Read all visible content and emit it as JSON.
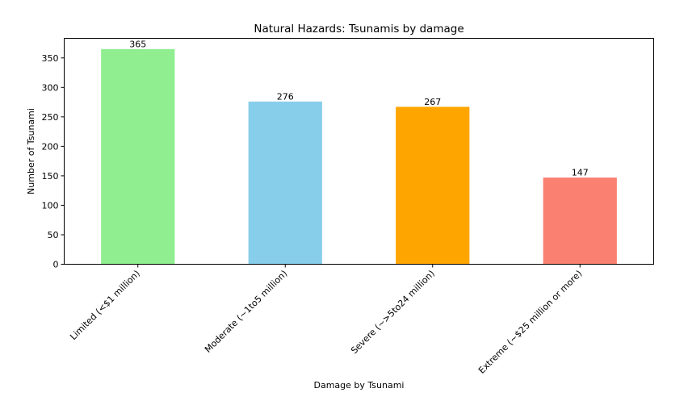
{
  "chart_data": {
    "type": "bar",
    "title": "Natural Hazards: Tsunamis by damage",
    "xlabel": "Damage by Tsunami",
    "ylabel": "Number of Tsunami",
    "categories": [
      "Limited (<$1 million)",
      "Moderate (~1to5 million)",
      "Severe (~>5to24 million)",
      "Extreme (~$25 million or more)"
    ],
    "values": [
      365,
      276,
      267,
      147
    ],
    "value_labels": [
      "365",
      "276",
      "267",
      "147"
    ],
    "colors": [
      "#90ee90",
      "#87ceeb",
      "#ffa500",
      "#fa8072"
    ],
    "ylim": [
      0,
      383.25
    ],
    "yticks": [
      0,
      50,
      100,
      150,
      200,
      250,
      300,
      350
    ],
    "ytick_labels": [
      "0",
      "50",
      "100",
      "150",
      "200",
      "250",
      "300",
      "350"
    ],
    "grid": false,
    "legend": "none"
  }
}
